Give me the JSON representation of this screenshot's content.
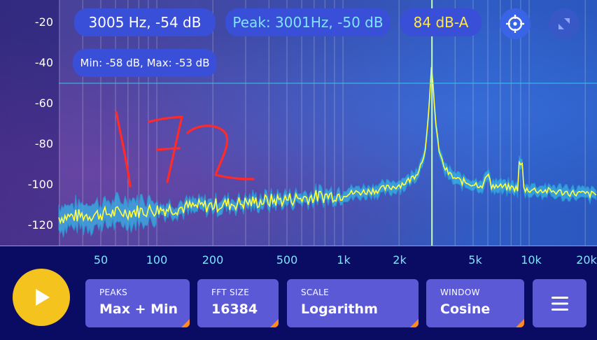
{
  "readouts": {
    "cursor": "3005 Hz, -54 dB",
    "peak": "Peak: 3001Hz, -50 dB",
    "level": "84 dB-A",
    "minmax": "Min: -58 dB, Max: -53 dB"
  },
  "y_axis": [
    "-20",
    "-40",
    "-60",
    "-80",
    "-100",
    "-120"
  ],
  "x_axis": [
    "50",
    "100",
    "200",
    "500",
    "1k",
    "2k",
    "5k",
    "10k",
    "20k"
  ],
  "annotation": "172",
  "controls": [
    {
      "label": "PEAKS",
      "value": "Max + Min"
    },
    {
      "label": "FFT SIZE",
      "value": "16384"
    },
    {
      "label": "SCALE",
      "value": "Logarithm"
    },
    {
      "label": "WINDOW",
      "value": "Cosine"
    }
  ],
  "icons": {
    "play": "play-icon",
    "target": "crosshair-icon",
    "expand": "expand-icon",
    "menu": "menu-icon"
  },
  "colors": {
    "background": "#0a0b63",
    "accent_cyan": "#35c9e8",
    "spectrum_line": "#ffff40",
    "play_button": "#f5c31d",
    "control_tile": "#5b59d6",
    "annotation": "#ff2a2a"
  },
  "cursor_frequency_hz": 3005,
  "cursor_level_db": -54
}
